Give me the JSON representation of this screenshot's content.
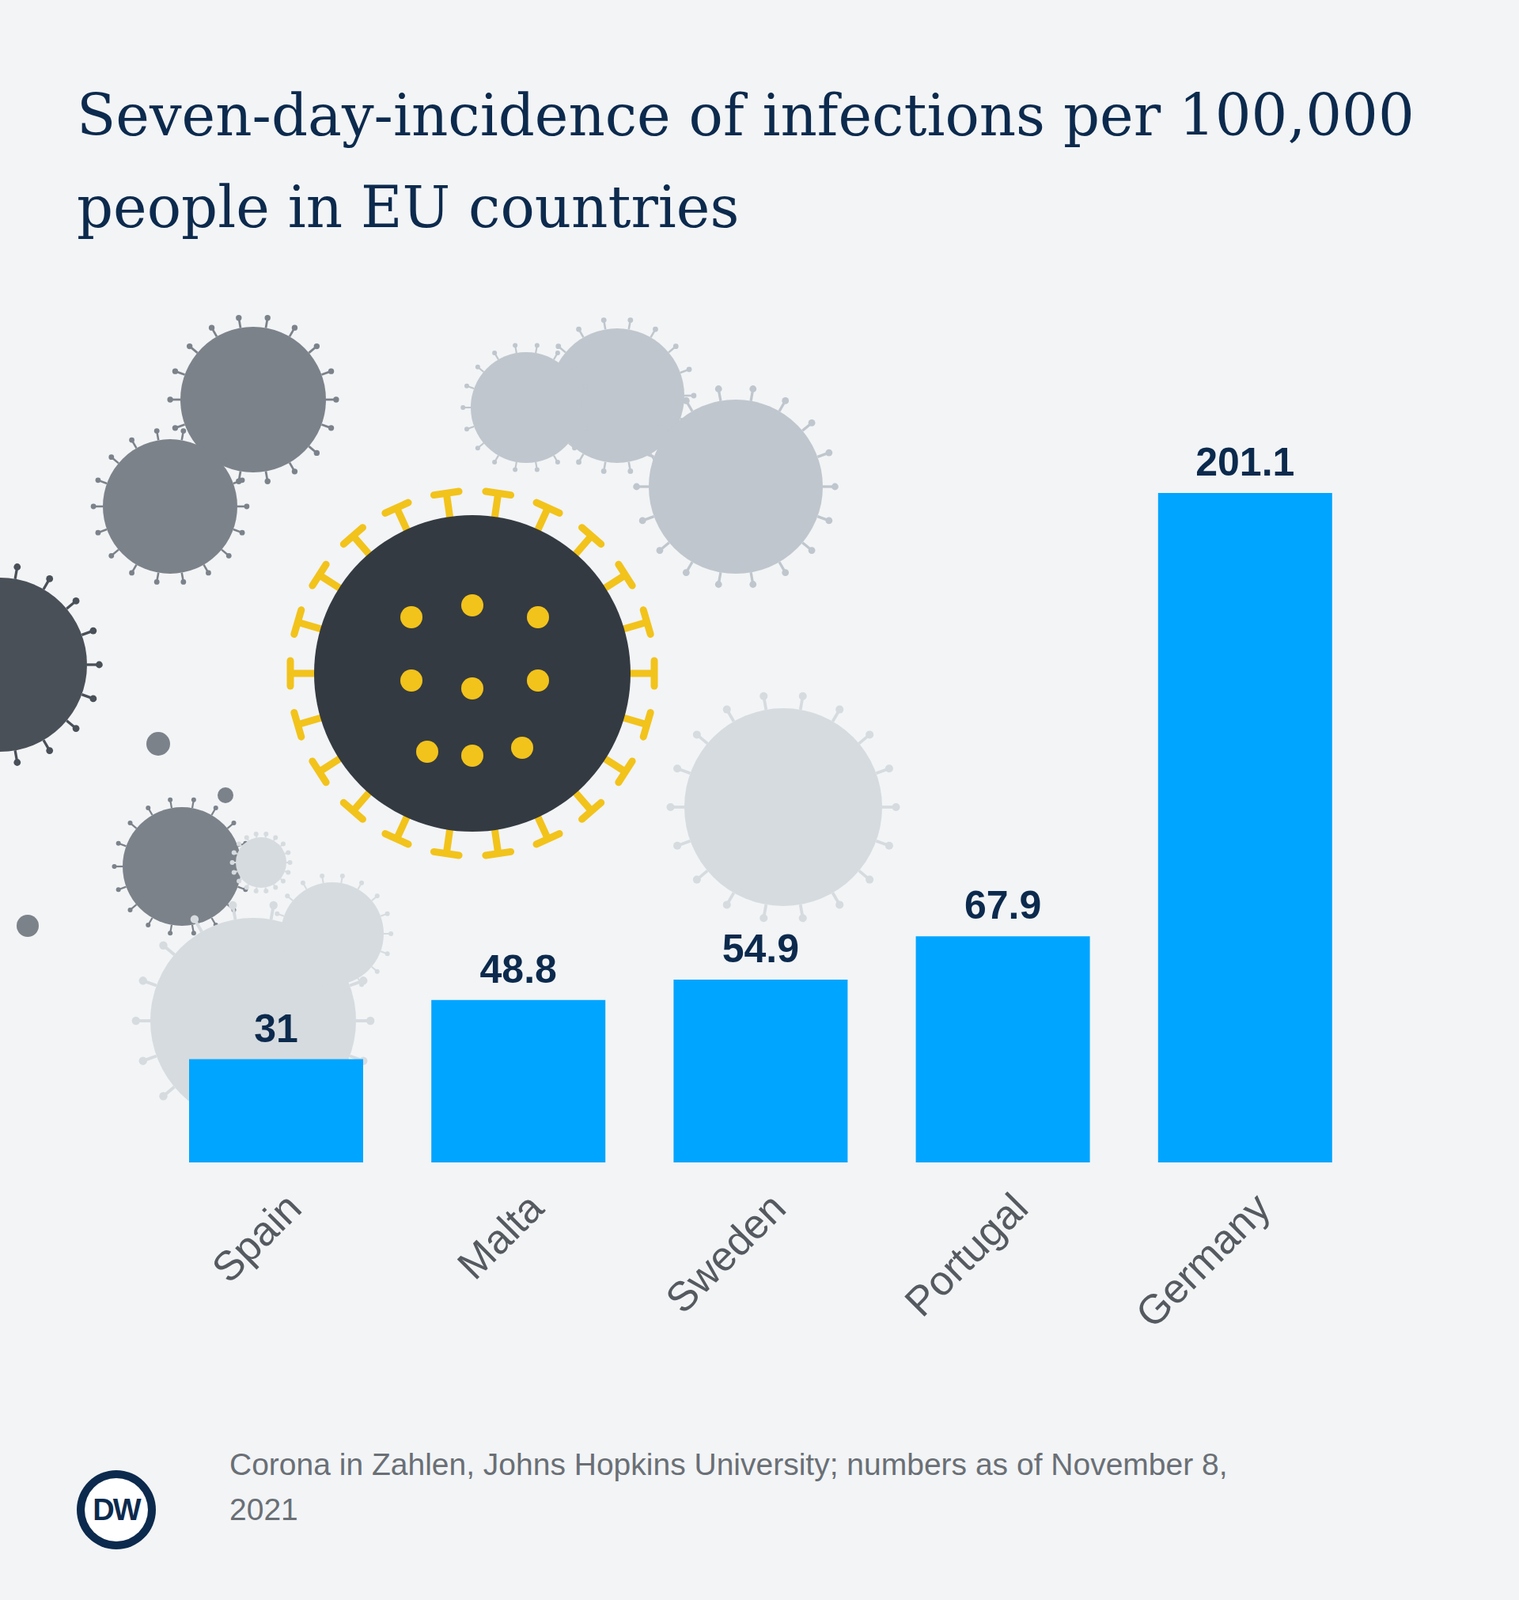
{
  "chart_data": {
    "type": "bar",
    "title": "Seven-day-incidence of infections per 100,000 people in EU countries",
    "categories": [
      "Spain",
      "Malta",
      "Sweden",
      "Portugal",
      "Germany"
    ],
    "values": [
      31,
      48.8,
      54.9,
      67.9,
      201.1
    ],
    "color": "#00a5ff",
    "ylim": [
      0,
      201.1
    ],
    "grid": false,
    "data_labels": true,
    "tick_labels": "x",
    "source": "Corona in Zahlen, Johns Hopkins University; numbers as of November 8, 2021",
    "logo": "DW"
  }
}
